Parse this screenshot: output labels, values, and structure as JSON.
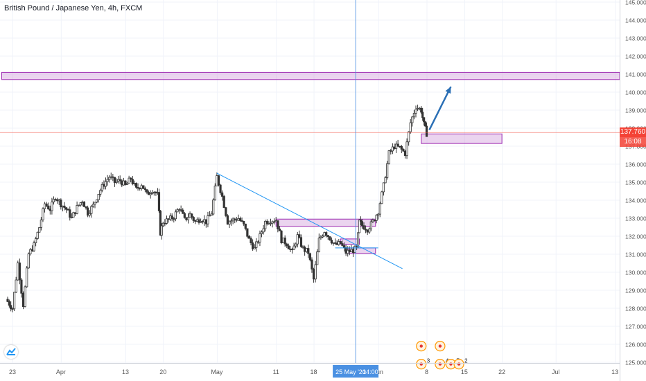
{
  "title": "British Pound / Japanese Yen, 4h, FXCM",
  "colors": {
    "up": "#26a69a",
    "down": "#ef5350",
    "candle": "#333333",
    "zone_fill": "rgba(206,147,216,0.40)",
    "zone_border": "#9c27b0",
    "trendline": "#2196f3",
    "arrow": "#2a6fb5",
    "price_line": "#f44336",
    "crosshair": "#4a90e2",
    "grid": "#f0f3fa"
  },
  "chart_data": {
    "type": "candlestick",
    "symbol": "GBPJPY",
    "interval": "4h",
    "ylim": [
      125.0,
      145.0
    ],
    "y_ticks": [
      "145.000",
      "144.000",
      "143.000",
      "142.000",
      "141.000",
      "140.000",
      "139.000",
      "138.000",
      "137.000",
      "136.000",
      "135.000",
      "134.000",
      "133.000",
      "132.000",
      "131.000",
      "130.000",
      "129.000",
      "128.000",
      "127.000",
      "126.000",
      "125.000"
    ],
    "x_ticks": [
      "23",
      "Apr",
      "13",
      "20",
      "May",
      "11",
      "18",
      "Jun",
      "8",
      "15",
      "22",
      "Jul",
      "13"
    ],
    "x_tick_positions": [
      0,
      9,
      21,
      28,
      38,
      49,
      56,
      68,
      77,
      84,
      91,
      101,
      112
    ],
    "current_price": "137.760",
    "countdown": "16:08",
    "crosshair_label": "25 May '20",
    "crosshair_time": "14:00",
    "price_path": [
      [
        -1.2,
        128.5
      ],
      [
        0,
        128.0
      ],
      [
        1,
        130.5
      ],
      [
        2,
        128.2
      ],
      [
        3,
        131.0
      ],
      [
        4,
        131.5
      ],
      [
        5,
        132.5
      ],
      [
        6,
        133.8
      ],
      [
        7,
        133.5
      ],
      [
        8,
        134.2
      ],
      [
        9,
        133.8
      ],
      [
        10,
        133.5
      ],
      [
        11,
        133.0
      ],
      [
        12,
        133.6
      ],
      [
        13,
        134.0
      ],
      [
        14,
        133.3
      ],
      [
        15,
        133.7
      ],
      [
        16,
        134.4
      ],
      [
        17,
        134.9
      ],
      [
        18,
        135.3
      ],
      [
        19,
        135.0
      ],
      [
        20,
        135.1
      ],
      [
        21,
        134.8
      ],
      [
        22,
        135.2
      ],
      [
        23,
        134.6
      ],
      [
        24,
        134.9
      ],
      [
        25,
        134.3
      ],
      [
        26,
        134.6
      ],
      [
        27,
        134.3
      ],
      [
        27.5,
        132.2
      ],
      [
        28,
        132.8
      ],
      [
        29,
        132.9
      ],
      [
        30,
        133.1
      ],
      [
        31,
        133.6
      ],
      [
        32,
        132.9
      ],
      [
        33,
        133.2
      ],
      [
        34,
        132.8
      ],
      [
        35,
        133.0
      ],
      [
        36,
        132.8
      ],
      [
        37,
        133.3
      ],
      [
        38,
        135.3
      ],
      [
        39,
        134.2
      ],
      [
        40,
        132.8
      ],
      [
        41,
        132.9
      ],
      [
        42,
        133.0
      ],
      [
        43,
        132.6
      ],
      [
        44,
        131.8
      ],
      [
        45,
        131.3
      ],
      [
        46,
        132.0
      ],
      [
        47,
        132.8
      ],
      [
        48,
        132.9
      ],
      [
        49,
        132.9
      ],
      [
        50,
        131.8
      ],
      [
        51,
        131.6
      ],
      [
        52,
        131.1
      ],
      [
        53,
        132.0
      ],
      [
        54,
        131.3
      ],
      [
        55,
        131.1
      ],
      [
        56,
        129.6
      ],
      [
        57,
        131.8
      ],
      [
        58,
        132.3
      ],
      [
        59,
        131.9
      ],
      [
        60,
        131.5
      ],
      [
        61,
        131.6
      ],
      [
        62,
        131.1
      ],
      [
        63,
        131.2
      ],
      [
        64,
        131.3
      ],
      [
        64.5,
        132.8
      ],
      [
        65,
        132.6
      ],
      [
        66,
        132.4
      ],
      [
        67,
        132.8
      ],
      [
        68,
        133.4
      ],
      [
        69,
        134.8
      ],
      [
        70,
        136.6
      ],
      [
        71,
        137.0
      ],
      [
        72,
        136.9
      ],
      [
        73,
        136.6
      ],
      [
        74,
        138.3
      ],
      [
        75,
        139.2
      ],
      [
        76,
        139.0
      ],
      [
        76.5,
        138.2
      ],
      [
        77,
        137.7
      ]
    ],
    "zones": [
      {
        "y1": 141.1,
        "y2": 140.7,
        "x1": -2,
        "x2": 120
      },
      {
        "y1": 137.68,
        "y2": 137.15,
        "x1": 76.0,
        "x2": 91.0
      },
      {
        "y1": 132.95,
        "y2": 132.55,
        "x1": 49.0,
        "x2": 67.5
      },
      {
        "y1": 131.85,
        "y2": 131.55,
        "x1": 61.0,
        "x2": 64.5
      },
      {
        "y1": 131.35,
        "y2": 131.05,
        "x1": 62.5,
        "x2": 67.5
      }
    ],
    "trendline": [
      [
        38.0,
        135.5
      ],
      [
        72.5,
        130.2
      ]
    ],
    "support_line": {
      "y": 131.35,
      "x1": 60.0,
      "x2": 68.0
    },
    "arrow": [
      [
        77.5,
        137.9
      ],
      [
        81.5,
        140.3
      ]
    ],
    "crosshair_x": 63.8,
    "event_icons": [
      {
        "x": 76.0,
        "y": 125.9,
        "label": ""
      },
      {
        "x": 79.5,
        "y": 125.9,
        "label": ""
      },
      {
        "x": 76.0,
        "y": 124.9,
        "label": "3"
      },
      {
        "x": 79.5,
        "y": 124.9,
        "label": "4"
      },
      {
        "x": 81.5,
        "y": 124.9,
        "label": "7"
      },
      {
        "x": 83.0,
        "y": 124.9,
        "label": "2"
      }
    ]
  }
}
